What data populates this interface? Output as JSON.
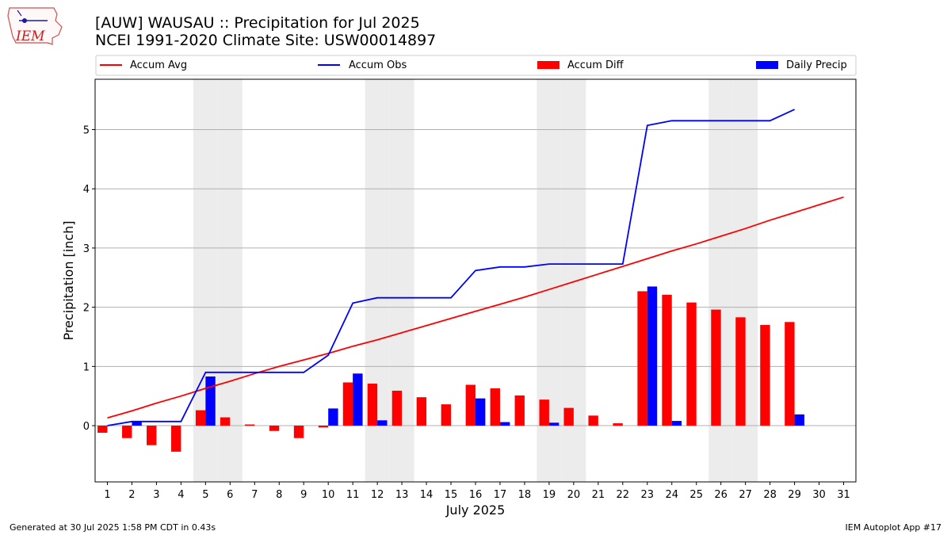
{
  "logo": {
    "text": "IEM"
  },
  "titles": {
    "line1": "[AUW] WAUSAU :: Precipitation for Jul 2025",
    "line2": "NCEI 1991-2020 Climate Site: USW00014897"
  },
  "footer": {
    "left": "Generated at 30 Jul 2025 1:58 PM CDT in 0.43s",
    "right": "IEM Autoplot App #17"
  },
  "chart_data": {
    "type": "bar",
    "title": "[AUW] WAUSAU :: Precipitation for Jul 2025",
    "subtitle": "NCEI 1991-2020 Climate Site: USW00014897",
    "xlabel": "July 2025",
    "ylabel": "Precipitation [inch]",
    "xlim": [
      0.5,
      31.5
    ],
    "ylim": [
      -0.95,
      5.85
    ],
    "yticks": [
      0,
      1,
      2,
      3,
      4,
      5
    ],
    "days": [
      1,
      2,
      3,
      4,
      5,
      6,
      7,
      8,
      9,
      10,
      11,
      12,
      13,
      14,
      15,
      16,
      17,
      18,
      19,
      20,
      21,
      22,
      23,
      24,
      25,
      26,
      27,
      28,
      29,
      30,
      31
    ],
    "weekend_days": [
      5,
      6,
      12,
      13,
      19,
      20,
      26,
      27
    ],
    "legend": [
      "Accum Avg",
      "Accum Obs",
      "Accum Diff",
      "Daily Precip"
    ],
    "colors": {
      "avg": "#ff0000",
      "obs": "#0000ff",
      "diff": "#ff0000",
      "daily": "#0000ff",
      "weekend": "#ececec",
      "grid": "#b0b0b0"
    },
    "accum_avg": [
      0.13,
      0.25,
      0.38,
      0.5,
      0.63,
      0.75,
      0.88,
      1.0,
      1.11,
      1.22,
      1.34,
      1.45,
      1.57,
      1.69,
      1.81,
      1.93,
      2.05,
      2.17,
      2.3,
      2.43,
      2.56,
      2.69,
      2.82,
      2.95,
      3.07,
      3.2,
      3.33,
      3.47,
      3.6,
      3.73,
      3.86
    ],
    "accum_obs": [
      0.0,
      0.07,
      0.07,
      0.07,
      0.9,
      0.9,
      0.9,
      0.9,
      0.9,
      1.19,
      2.07,
      2.16,
      2.16,
      2.16,
      2.16,
      2.62,
      2.68,
      2.68,
      2.73,
      2.73,
      2.73,
      2.73,
      5.07,
      5.15,
      5.15,
      5.15,
      5.15,
      5.15,
      5.34
    ],
    "accum_diff": [
      -0.12,
      -0.21,
      -0.33,
      -0.44,
      0.26,
      0.14,
      0.02,
      -0.09,
      -0.21,
      -0.03,
      0.73,
      0.71,
      0.59,
      0.48,
      0.36,
      0.69,
      0.63,
      0.51,
      0.44,
      0.3,
      0.17,
      0.04,
      2.27,
      2.21,
      2.08,
      1.96,
      1.83,
      1.7,
      1.75
    ],
    "daily_precip": [
      0.0,
      0.07,
      0.0,
      0.0,
      0.83,
      0.0,
      0.0,
      0.0,
      0.0,
      0.29,
      0.88,
      0.09,
      0.0,
      0.0,
      0.0,
      0.46,
      0.06,
      0.0,
      0.05,
      0.0,
      0.0,
      0.0,
      2.35,
      0.08,
      0.0,
      0.0,
      0.0,
      0.0,
      0.19
    ]
  }
}
